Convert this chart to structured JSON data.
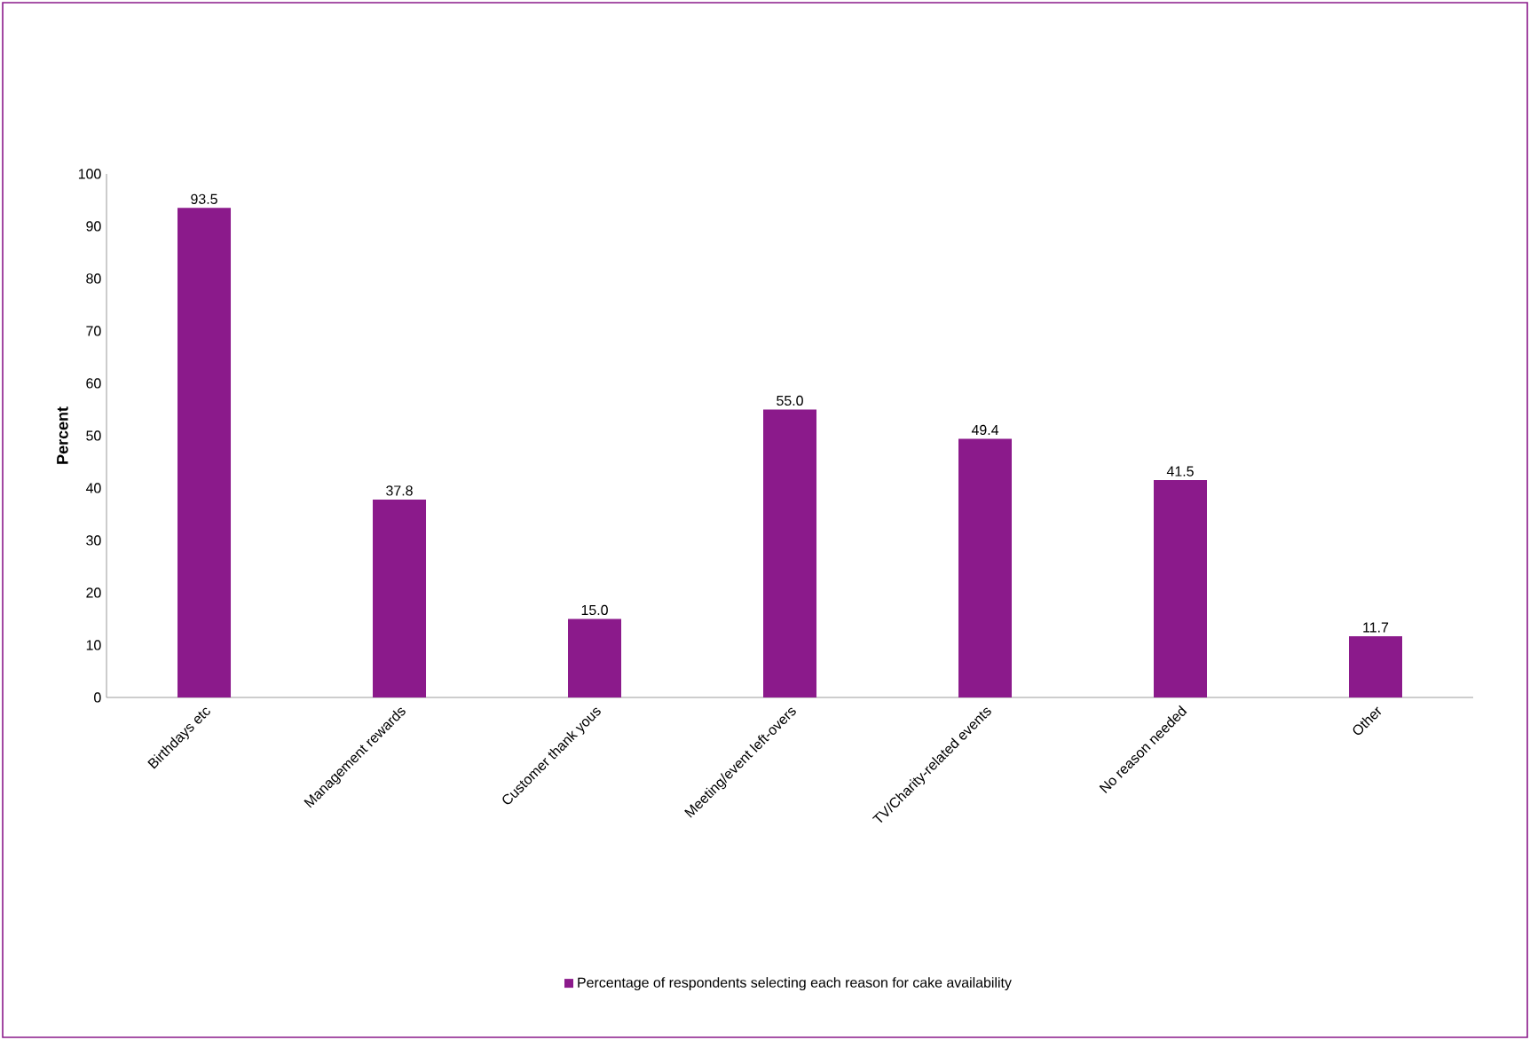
{
  "chart_data": {
    "type": "bar",
    "ylabel": "Percent",
    "categories": [
      "Birthdays etc",
      "Management rewards",
      "Customer thank yous",
      "Meeting/event left-overs",
      "TV/Charity-related events",
      "No reason needed",
      "Other"
    ],
    "series": [
      {
        "name": "Percentage of respondents selecting each reason for cake availability",
        "color": "#8b1a8b",
        "values": [
          93.5,
          37.8,
          15.0,
          55.0,
          49.4,
          41.5,
          11.7
        ],
        "value_labels": [
          "93.5",
          "37.8",
          "15.0",
          "55.0",
          "49.4",
          "41.5",
          "11.7"
        ]
      }
    ],
    "ylim": [
      0,
      100
    ],
    "yticks": [
      0,
      10,
      20,
      30,
      40,
      50,
      60,
      70,
      80,
      90,
      100
    ],
    "grid": false,
    "legend": "bottom"
  }
}
